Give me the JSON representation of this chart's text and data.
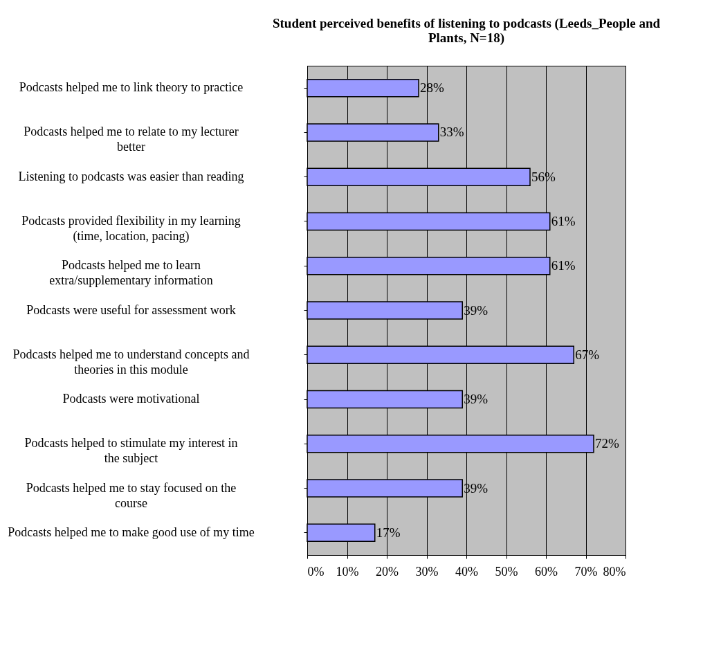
{
  "chart_data": {
    "type": "bar",
    "orientation": "horizontal",
    "title": "Student perceived benefits of listening to podcasts (Leeds_People and Plants, N=18)",
    "categories": [
      "Podcasts helped me to link theory to practice",
      "Podcasts helped me to relate to my lecturer better",
      "Listening to podcasts was easier than reading",
      "Podcasts provided flexibility in my learning (time, location, pacing)",
      "Podcasts helped me to learn extra/supplementary information",
      "Podcasts were useful for assessment work",
      "Podcasts helped me to understand concepts and theories in this module",
      "Podcasts were motivational",
      "Podcasts helped to stimulate my interest in the subject",
      "Podcasts helped me to stay focused on the course",
      "Podcasts helped me to make good use of my time"
    ],
    "values": [
      28,
      33,
      56,
      61,
      61,
      39,
      67,
      39,
      72,
      39,
      17
    ],
    "value_labels": [
      "28%",
      "33%",
      "56%",
      "61%",
      "61%",
      "39%",
      "67%",
      "39%",
      "72%",
      "39%",
      "17%"
    ],
    "color": "#9999ff",
    "xlim": [
      0,
      80
    ],
    "xticks": [
      {
        "value": 0,
        "label": "0%"
      },
      {
        "value": 10,
        "label": "10%"
      },
      {
        "value": 20,
        "label": "20%"
      },
      {
        "value": 30,
        "label": "30%"
      },
      {
        "value": 40,
        "label": "40%"
      },
      {
        "value": 50,
        "label": "50%"
      },
      {
        "value": 60,
        "label": "60%"
      },
      {
        "value": 70,
        "label": "70%"
      },
      {
        "value": 80,
        "label": "80%"
      }
    ],
    "grid": "x"
  }
}
